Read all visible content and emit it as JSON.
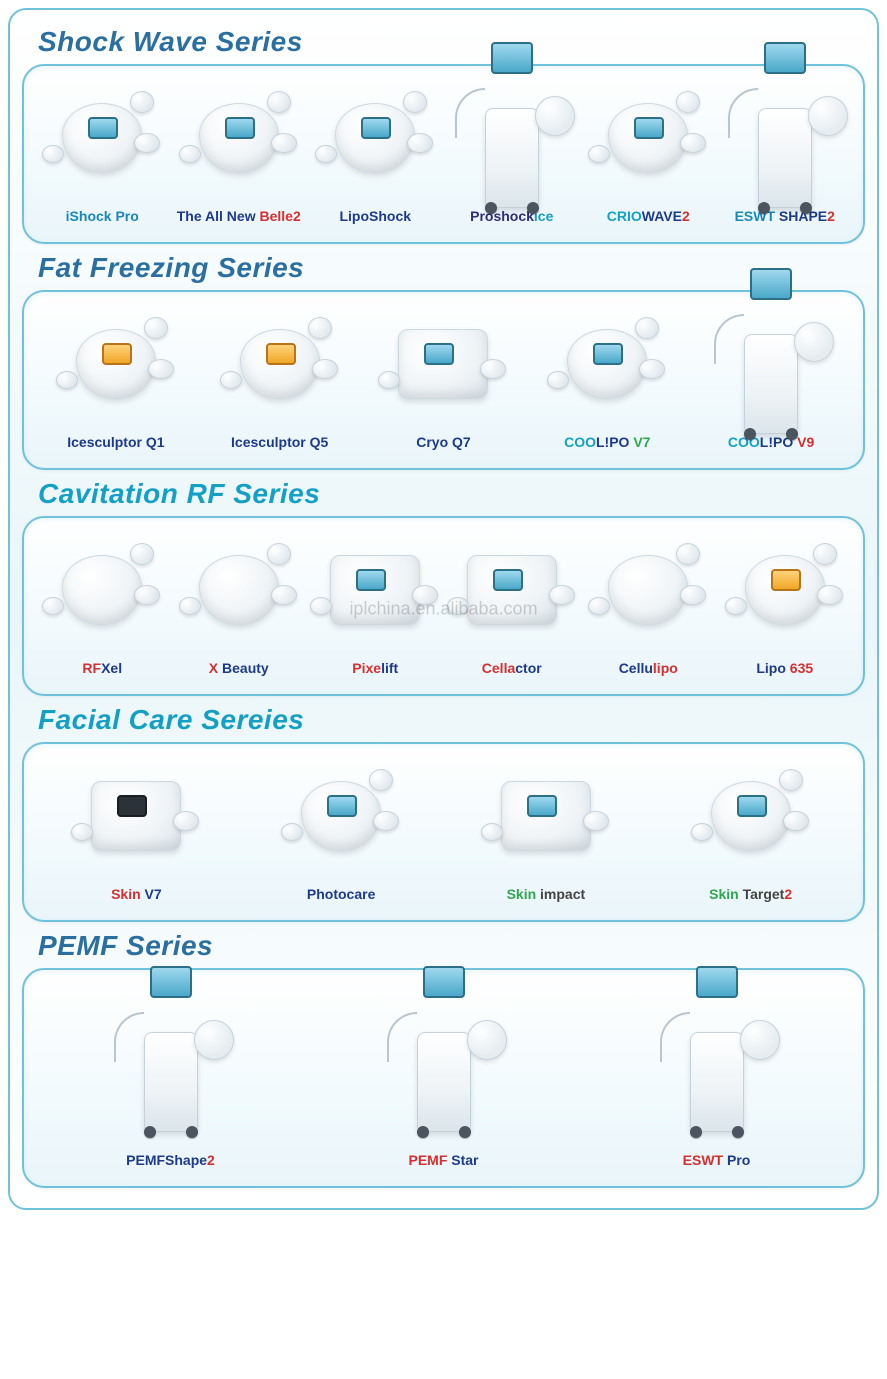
{
  "colors": {
    "border": "#6fc2d9",
    "title_shockwave": "#2b6fa0",
    "title_fatfreezing": "#2b6fa0",
    "title_cavitation": "#14a0c4",
    "title_facialcare": "#14a0c4",
    "title_pemf": "#2b6fa0"
  },
  "watermark": "iplchina.en.alibaba.com",
  "sections": [
    {
      "id": "shockwave",
      "title": "Shock Wave Series",
      "title_color": "#2b6fa0",
      "tall": false,
      "items": [
        {
          "name": "iShock Pro",
          "parts": [
            {
              "t": "iShock ",
              "c": "#1a88b8"
            },
            {
              "t": "Pro",
              "c": "#1a88b8"
            }
          ],
          "shape": "pod",
          "screen": "blue"
        },
        {
          "name": "The All New Belle 2",
          "parts": [
            {
              "t": "The All ",
              "c": "#1e3a8a"
            },
            {
              "t": "New",
              "c": "#1e3a8a"
            },
            {
              "t": " Belle",
              "c": "#d62f2f"
            },
            {
              "t": "2",
              "c": "#d62f2f"
            }
          ],
          "shape": "pod",
          "screen": "blue"
        },
        {
          "name": "LipoShock",
          "parts": [
            {
              "t": "Lipo",
              "c": "#1e3a8a"
            },
            {
              "t": "Shock",
              "c": "#1e3a8a"
            }
          ],
          "shape": "pod",
          "screen": "blue"
        },
        {
          "name": "Proshockice",
          "parts": [
            {
              "t": "Proshock",
              "c": "#2e2e7a"
            },
            {
              "t": "ice",
              "c": "#14a0c4"
            }
          ],
          "shape": "tower",
          "screen": "blue"
        },
        {
          "name": "CRIOWAVE 2",
          "parts": [
            {
              "t": "CRIO",
              "c": "#14a0c4"
            },
            {
              "t": "WAVE",
              "c": "#1e3a8a"
            },
            {
              "t": "2",
              "c": "#d62f2f"
            }
          ],
          "shape": "pod",
          "screen": "blue"
        },
        {
          "name": "ESWT SHAPE 2",
          "parts": [
            {
              "t": "ESWT ",
              "c": "#1a88b8"
            },
            {
              "t": "SHAPE",
              "c": "#1e3a8a"
            },
            {
              "t": "2",
              "c": "#d62f2f"
            }
          ],
          "shape": "tower",
          "screen": "blue"
        }
      ]
    },
    {
      "id": "fatfreezing",
      "title": "Fat Freezing Series",
      "title_color": "#2b6fa0",
      "tall": false,
      "items": [
        {
          "name": "Icesculptor Q1",
          "parts": [
            {
              "t": "Icesculptor ",
              "c": "#1e3a8a"
            },
            {
              "t": "Q1",
              "c": "#1e3a8a"
            }
          ],
          "shape": "pod",
          "screen": "orange"
        },
        {
          "name": "Icesculptor Q5",
          "parts": [
            {
              "t": "Icesculptor ",
              "c": "#1e3a8a"
            },
            {
              "t": "Q5",
              "c": "#1e3a8a"
            }
          ],
          "shape": "pod",
          "screen": "orange"
        },
        {
          "name": "Cryo Q7",
          "parts": [
            {
              "t": "Cryo ",
              "c": "#1e3a8a"
            },
            {
              "t": "Q7",
              "c": "#1e3a8a"
            }
          ],
          "shape": "box",
          "screen": "blue"
        },
        {
          "name": "COOLIPO V7",
          "parts": [
            {
              "t": "COO",
              "c": "#14a0c4"
            },
            {
              "t": "L!PO ",
              "c": "#1e3a8a"
            },
            {
              "t": "V7",
              "c": "#2fa84f"
            }
          ],
          "shape": "pod",
          "screen": "blue"
        },
        {
          "name": "COOLIPO V9",
          "parts": [
            {
              "t": "COO",
              "c": "#14a0c4"
            },
            {
              "t": "L!PO ",
              "c": "#1e3a8a"
            },
            {
              "t": "V9",
              "c": "#d62f2f"
            }
          ],
          "shape": "tower",
          "screen": "blue"
        }
      ]
    },
    {
      "id": "cavitation",
      "title": "Cavitation RF Series",
      "title_color": "#14a0c4",
      "tall": false,
      "items": [
        {
          "name": "RFXel",
          "parts": [
            {
              "t": "RF",
              "c": "#d62f2f"
            },
            {
              "t": "Xel",
              "c": "#1e3a8a"
            }
          ],
          "shape": "pod",
          "screen": "none"
        },
        {
          "name": "X Beauty",
          "parts": [
            {
              "t": "X ",
              "c": "#d62f2f"
            },
            {
              "t": "Beauty",
              "c": "#1e3a8a"
            }
          ],
          "shape": "pod",
          "screen": "none"
        },
        {
          "name": "Pixelift",
          "parts": [
            {
              "t": "Pixe",
              "c": "#d62f2f"
            },
            {
              "t": "lift",
              "c": "#1e3a8a"
            }
          ],
          "shape": "box",
          "screen": "blue"
        },
        {
          "name": "Cellactor",
          "parts": [
            {
              "t": "Cella",
              "c": "#d62f2f"
            },
            {
              "t": "ctor",
              "c": "#1e3a8a"
            }
          ],
          "shape": "box",
          "screen": "blue"
        },
        {
          "name": "Cellulipo",
          "parts": [
            {
              "t": "Cellu",
              "c": "#1e3a8a"
            },
            {
              "t": "lipo",
              "c": "#d62f2f"
            }
          ],
          "shape": "pod",
          "screen": "none"
        },
        {
          "name": "Lipo 635",
          "parts": [
            {
              "t": "Lipo ",
              "c": "#1e3a8a"
            },
            {
              "t": "635",
              "c": "#d62f2f"
            }
          ],
          "shape": "pod",
          "screen": "orange"
        }
      ]
    },
    {
      "id": "facialcare",
      "title": "Facial Care Sereies",
      "title_color": "#14a0c4",
      "tall": false,
      "items": [
        {
          "name": "Skin V7",
          "parts": [
            {
              "t": "Skin ",
              "c": "#d62f2f"
            },
            {
              "t": "V7",
              "c": "#1e3a8a"
            }
          ],
          "shape": "box",
          "screen": "dark"
        },
        {
          "name": "Photocare",
          "parts": [
            {
              "t": "Photo",
              "c": "#1e3a8a"
            },
            {
              "t": "care",
              "c": "#1e3a8a"
            }
          ],
          "shape": "pod",
          "screen": "blue"
        },
        {
          "name": "Skin impact",
          "parts": [
            {
              "t": "Skin",
              "c": "#2fa84f"
            },
            {
              "t": " impact",
              "c": "#444"
            }
          ],
          "shape": "box",
          "screen": "blue"
        },
        {
          "name": "Skin Target 2",
          "parts": [
            {
              "t": "Skin ",
              "c": "#2fa84f"
            },
            {
              "t": "Target",
              "c": "#444"
            },
            {
              "t": "2",
              "c": "#d62f2f"
            }
          ],
          "shape": "pod",
          "screen": "blue"
        }
      ]
    },
    {
      "id": "pemf",
      "title": "PEMF Series",
      "title_color": "#2b6fa0",
      "tall": true,
      "items": [
        {
          "name": "PEMFShape 2",
          "parts": [
            {
              "t": "PEMF",
              "c": "#1e3a8a"
            },
            {
              "t": "Shape",
              "c": "#1e3a8a"
            },
            {
              "t": "2",
              "c": "#d62f2f"
            }
          ],
          "shape": "tower",
          "screen": "blue"
        },
        {
          "name": "PEMF Star",
          "parts": [
            {
              "t": "PEMF ",
              "c": "#d62f2f"
            },
            {
              "t": "Star",
              "c": "#1e3a8a"
            }
          ],
          "shape": "tower",
          "screen": "blue"
        },
        {
          "name": "ESWT Pro",
          "parts": [
            {
              "t": "ESWT ",
              "c": "#d62f2f"
            },
            {
              "t": "Pro",
              "c": "#1e3a8a"
            }
          ],
          "shape": "tower",
          "screen": "blue"
        }
      ]
    }
  ]
}
